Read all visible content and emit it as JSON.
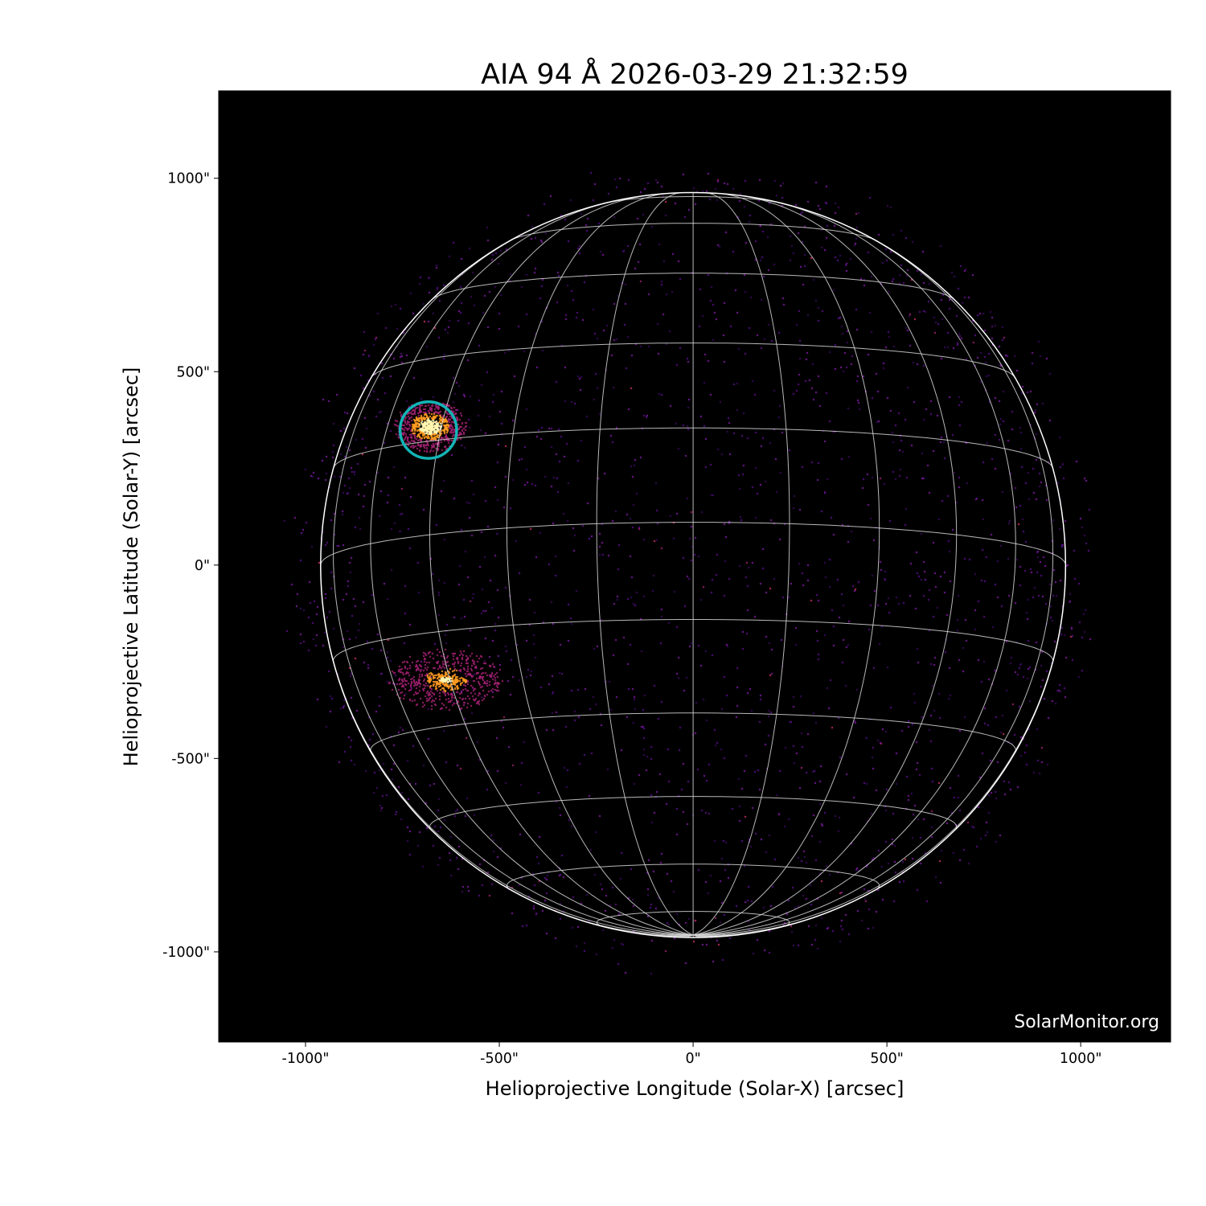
{
  "chart_data": {
    "type": "heatmap",
    "title": "AIA 94 Å 2026-03-29 21:32:59",
    "xlabel": "Helioprojective Longitude (Solar-X) [arcsec]",
    "ylabel": "Helioprojective Latitude (Solar-Y) [arcsec]",
    "xlim": [
      -1224,
      1232
    ],
    "ylim": [
      -1233,
      1226
    ],
    "xticks": [
      {
        "value": -1000,
        "label": "-1000\""
      },
      {
        "value": -500,
        "label": "-500\""
      },
      {
        "value": 0,
        "label": "0\""
      },
      {
        "value": 500,
        "label": "500\""
      },
      {
        "value": 1000,
        "label": "1000\""
      }
    ],
    "yticks": [
      {
        "value": 1000,
        "label": "1000\""
      },
      {
        "value": 500,
        "label": "500\""
      },
      {
        "value": 0,
        "label": "0\""
      },
      {
        "value": -500,
        "label": "-500\""
      },
      {
        "value": -1000,
        "label": "-1000\""
      }
    ],
    "colormap": "sdoaia94",
    "solar_radius_arcsec": 961,
    "heliographic_grid": {
      "spacing_deg": 15,
      "b0_deg": -6.6,
      "color": "#d8d8d8"
    },
    "limb_color": "#ffffff",
    "background_color": "#000000",
    "annotations": [
      {
        "type": "circle",
        "center": [
          -683,
          349
        ],
        "radius": 73,
        "color": "#12b5b5"
      }
    ],
    "bright_regions": [
      {
        "center": [
          -680,
          360
        ],
        "intensity": "high"
      },
      {
        "center": [
          -640,
          -295
        ],
        "intensity": "medium"
      }
    ],
    "watermark": "SolarMonitor.org"
  }
}
